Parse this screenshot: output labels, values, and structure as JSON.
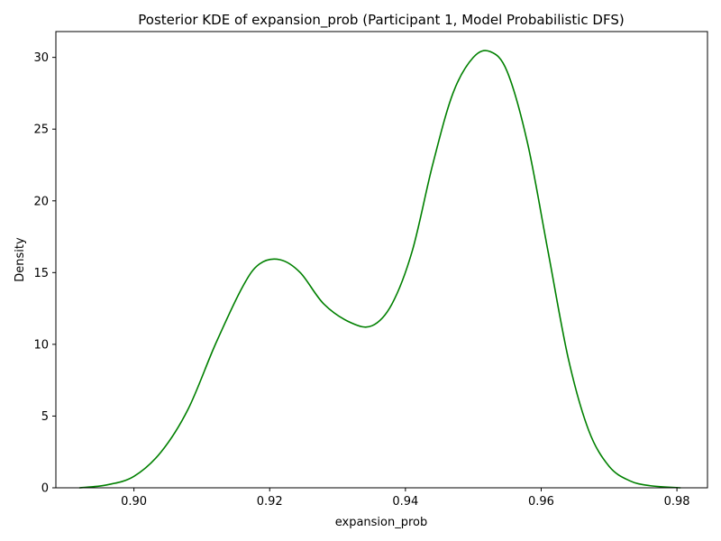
{
  "chart_data": {
    "type": "line",
    "title": "Posterior KDE of expansion_prob (Participant 1, Model Probabilistic DFS)",
    "xlabel": "expansion_prob",
    "ylabel": "Density",
    "xlim": [
      0.8885,
      0.9845
    ],
    "ylim": [
      0,
      31.8
    ],
    "xticks": [
      0.9,
      0.92,
      0.94,
      0.96,
      0.98
    ],
    "xtick_labels": [
      "0.90",
      "0.92",
      "0.94",
      "0.96",
      "0.98"
    ],
    "yticks": [
      0,
      5,
      10,
      15,
      20,
      25,
      30
    ],
    "ytick_labels": [
      "0",
      "5",
      "10",
      "15",
      "20",
      "25",
      "30"
    ],
    "grid": false,
    "series": [
      {
        "color": "#008000",
        "x": [
          0.892,
          0.896,
          0.9,
          0.904,
          0.908,
          0.912,
          0.916,
          0.9185,
          0.9215,
          0.9245,
          0.928,
          0.932,
          0.9351,
          0.938,
          0.941,
          0.944,
          0.947,
          0.95,
          0.9525,
          0.955,
          0.958,
          0.961,
          0.964,
          0.967,
          0.97,
          0.973,
          0.976,
          0.9805
        ],
        "y": [
          0.0,
          0.2,
          0.8,
          2.5,
          5.5,
          10.0,
          14.0,
          15.6,
          15.9,
          15.0,
          12.8,
          11.5,
          11.3,
          12.8,
          16.5,
          22.5,
          27.5,
          30.0,
          30.4,
          29.0,
          24.0,
          16.5,
          9.0,
          4.0,
          1.5,
          0.5,
          0.15,
          0.0
        ]
      }
    ]
  }
}
